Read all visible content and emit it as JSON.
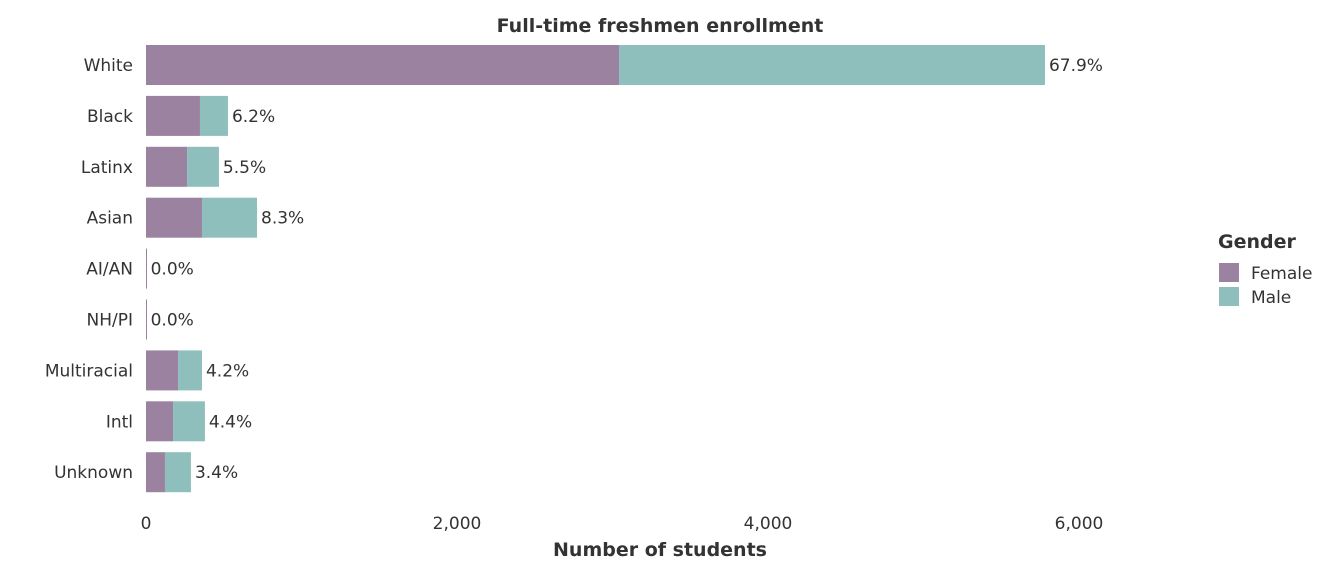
{
  "chart_data": {
    "type": "bar",
    "orientation": "horizontal",
    "stacked": true,
    "title": "Full-time freshmen enrollment",
    "xlabel": "Number of students",
    "ylabel": "",
    "xlim": [
      0,
      7500
    ],
    "xticks": [
      0,
      2000,
      4000,
      6000
    ],
    "xtick_labels": [
      "0",
      "2,000",
      "4,000",
      "6,000"
    ],
    "grid": false,
    "categories": [
      "White",
      "Black",
      "Latinx",
      "Asian",
      "AI/AN",
      "NH/PI",
      "Multiracial",
      "Intl",
      "Unknown"
    ],
    "series": [
      {
        "name": "Female",
        "color": "#9a82a0",
        "values": [
          3042,
          347,
          264,
          360,
          4,
          4,
          206,
          174,
          122
        ]
      },
      {
        "name": "Male",
        "color": "#8fbfbc",
        "values": [
          2739,
          180,
          205,
          354,
          0,
          0,
          154,
          205,
          167
        ]
      }
    ],
    "data_labels": [
      "67.9%",
      "6.2%",
      "5.5%",
      "8.3%",
      "0.0%",
      "0.0%",
      "4.2%",
      "4.4%",
      "3.4%"
    ],
    "legend": {
      "title": "Gender",
      "placement": "right",
      "entries": [
        "Female",
        "Male"
      ]
    }
  }
}
